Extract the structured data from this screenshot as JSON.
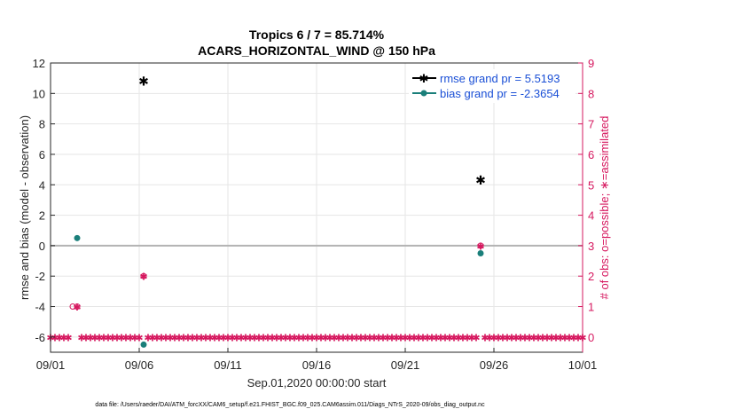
{
  "chart_data": {
    "type": "scatter",
    "title_line1": "Tropics 6 / 7 = 85.714%",
    "title_line2": "ACARS_HORIZONTAL_WIND @ 150 hPa",
    "xlabel": "Sep.01,2020 00:00:00 start",
    "ylabel_left": "rmse and bias (model - observation)",
    "ylabel_right": "# of obs: o=possible; ∗=assimilated",
    "x_range_days": [
      0,
      30
    ],
    "x_ticks": [
      {
        "day": 0,
        "label": "09/01"
      },
      {
        "day": 5,
        "label": "09/06"
      },
      {
        "day": 10,
        "label": "09/11"
      },
      {
        "day": 15,
        "label": "09/16"
      },
      {
        "day": 20,
        "label": "09/21"
      },
      {
        "day": 25,
        "label": "09/26"
      },
      {
        "day": 30,
        "label": "10/01"
      }
    ],
    "ylim_left": [
      -7,
      12
    ],
    "y_ticks_left": [
      -6,
      -4,
      -2,
      0,
      2,
      4,
      6,
      8,
      10,
      12
    ],
    "ylim_right": [
      -0.5,
      9
    ],
    "y_ticks_right": [
      0,
      1,
      2,
      3,
      4,
      5,
      6,
      7,
      8,
      9
    ],
    "bin_days": 0.25,
    "series": [
      {
        "name": "rmse",
        "legend": "rmse grand pr = 5.5193",
        "color": "#000000",
        "points": [
          {
            "day": 5.25,
            "value": 10.8
          },
          {
            "day": 24.25,
            "value": 4.3
          }
        ]
      },
      {
        "name": "bias",
        "legend": "bias grand pr = -2.3654",
        "color": "#1a7f7a",
        "points": [
          {
            "day": 1.5,
            "value": 0.5
          },
          {
            "day": 5.25,
            "value": -6.5
          },
          {
            "day": 24.25,
            "value": -0.5
          }
        ]
      },
      {
        "name": "possible",
        "color": "#d6185f",
        "points": [
          {
            "day": 1.25,
            "value": 1
          },
          {
            "day": 1.5,
            "value": 1
          },
          {
            "day": 5.25,
            "value": 2
          },
          {
            "day": 24.25,
            "value": 3
          }
        ]
      },
      {
        "name": "assimilated",
        "color": "#d6185f",
        "points": [
          {
            "day": 1.5,
            "value": 1
          },
          {
            "day": 5.25,
            "value": 2
          },
          {
            "day": 24.25,
            "value": 3
          }
        ]
      }
    ],
    "legend_position": "top-right",
    "grid": true
  },
  "colors": {
    "rmse": "#000000",
    "bias": "#1a7f7a",
    "obs": "#d6185f",
    "legend_text": "#1a4fd6",
    "grid": "#e6e6e6",
    "zero_line": "#b3b3b3"
  },
  "footer": "data file: /Users/raeder/DAI/ATM_forcXX/CAM6_setup/f.e21.FHIST_BGC.f09_025.CAM6assim.011/Diags_NTrS_2020-09/obs_diag_output.nc"
}
